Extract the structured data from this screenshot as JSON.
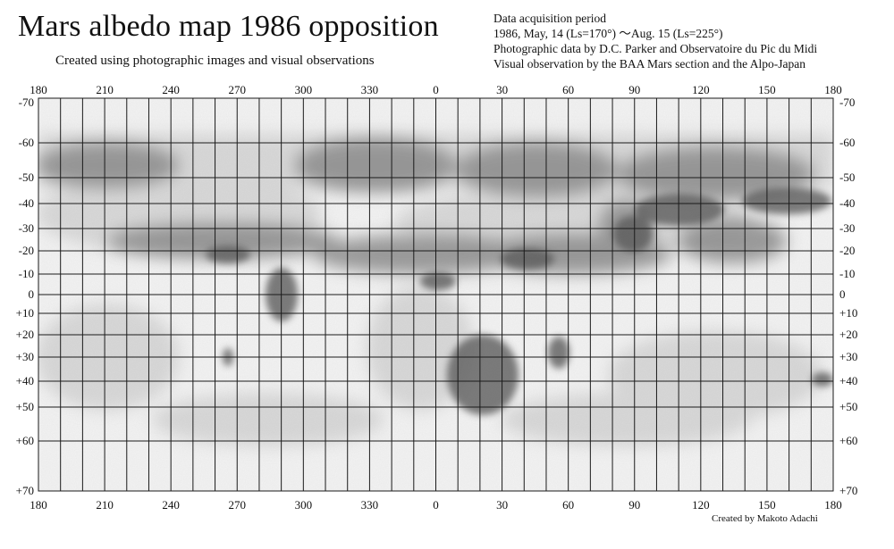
{
  "header": {
    "title": "Mars albedo map 1986  opposition",
    "subtitle": "Created using photographic images and visual observations"
  },
  "info": {
    "line1": "Data acquisition period",
    "line2": "1986, May, 14 (Ls=170°)  ～Aug. 15 (Ls=225°)",
    "line3": "Photographic data by D.C. Parker and Observatoire du Pic du Midi",
    "line4": "Visual observation by the BAA Mars section and the Alpo-Japan"
  },
  "credit": "Created by Makoto Adachi",
  "axes": {
    "longitude_labels": [
      "180",
      "210",
      "240",
      "270",
      "300",
      "330",
      "0",
      "30",
      "60",
      "90",
      "120",
      "150",
      "180"
    ],
    "latitude_labels": [
      "-70",
      "-60",
      "-50",
      "-40",
      "-30",
      "-20",
      "-10",
      "0",
      "+10",
      "+20",
      "+30",
      "+40",
      "+50",
      "+60",
      "+70"
    ]
  },
  "colors": {
    "grid": "#1a1a1a",
    "paper": "#f4f4f4",
    "dark_albedo": "#4a4a4a"
  }
}
